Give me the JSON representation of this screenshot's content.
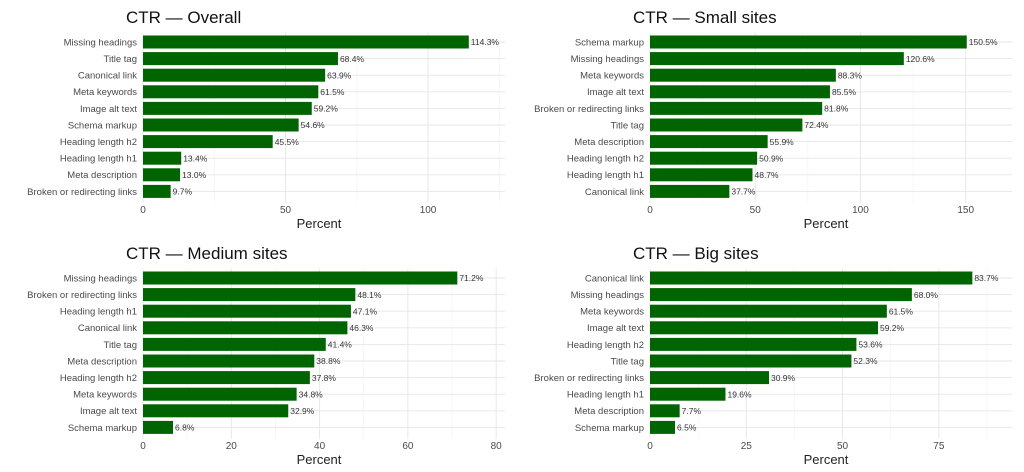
{
  "chart_data": [
    {
      "type": "bar",
      "orientation": "horizontal",
      "title": "CTR — Overall",
      "xlabel": "Percent",
      "ylabel": "",
      "xlim": [
        0,
        127
      ],
      "xticks": [
        0,
        50,
        100
      ],
      "bar_color": "#006400",
      "categories": [
        "Missing headings",
        "Title tag",
        "Canonical link",
        "Meta keywords",
        "Image alt text",
        "Schema markup",
        "Heading length h2",
        "Heading length h1",
        "Meta description",
        "Broken or redirecting links"
      ],
      "values": [
        114.3,
        68.4,
        63.9,
        61.5,
        59.2,
        54.6,
        45.5,
        13.4,
        13.0,
        9.7
      ],
      "labels": [
        "114.3%",
        "68.4%",
        "63.9%",
        "61.5%",
        "59.2%",
        "54.6%",
        "45.5%",
        "13.4%",
        "13.0%",
        "9.7%"
      ]
    },
    {
      "type": "bar",
      "orientation": "horizontal",
      "title": "CTR — Small sites",
      "xlabel": "Percent",
      "ylabel": "",
      "xlim": [
        0,
        172
      ],
      "xticks": [
        0,
        50,
        100,
        150
      ],
      "bar_color": "#006400",
      "categories": [
        "Schema markup",
        "Missing headings",
        "Meta keywords",
        "Image alt text",
        "Broken or redirecting links",
        "Title tag",
        "Meta description",
        "Heading length h2",
        "Heading length h1",
        "Canonical link"
      ],
      "values": [
        150.5,
        120.6,
        88.3,
        85.5,
        81.8,
        72.4,
        55.9,
        50.9,
        48.7,
        37.7
      ],
      "labels": [
        "150.5%",
        "120.6%",
        "88.3%",
        "85.5%",
        "81.8%",
        "72.4%",
        "55.9%",
        "50.9%",
        "48.7%",
        "37.7%"
      ]
    },
    {
      "type": "bar",
      "orientation": "horizontal",
      "title": "CTR — Medium sites",
      "xlabel": "Percent",
      "ylabel": "",
      "xlim": [
        0,
        82
      ],
      "xticks": [
        0,
        20,
        40,
        60,
        80
      ],
      "bar_color": "#006400",
      "categories": [
        "Missing headings",
        "Broken or redirecting links",
        "Heading length h1",
        "Canonical link",
        "Title tag",
        "Meta description",
        "Heading length h2",
        "Meta keywords",
        "Image alt text",
        "Schema markup"
      ],
      "values": [
        71.2,
        48.1,
        47.1,
        46.3,
        41.4,
        38.8,
        37.8,
        34.8,
        32.9,
        6.8
      ],
      "labels": [
        "71.2%",
        "48.1%",
        "47.1%",
        "46.3%",
        "41.4%",
        "38.8%",
        "37.8%",
        "34.8%",
        "32.9%",
        "6.8%"
      ]
    },
    {
      "type": "bar",
      "orientation": "horizontal",
      "title": "CTR — Big sites",
      "xlabel": "Percent",
      "ylabel": "",
      "xlim": [
        0,
        94
      ],
      "xticks": [
        0,
        25,
        50,
        75
      ],
      "bar_color": "#006400",
      "categories": [
        "Canonical link",
        "Missing headings",
        "Meta keywords",
        "Image alt text",
        "Heading length h2",
        "Title tag",
        "Broken or redirecting links",
        "Heading length h1",
        "Meta description",
        "Schema markup"
      ],
      "values": [
        83.7,
        68.0,
        61.5,
        59.2,
        53.6,
        52.3,
        30.9,
        19.6,
        7.7,
        6.5
      ],
      "labels": [
        "83.7%",
        "68.0%",
        "61.5%",
        "59.2%",
        "53.6%",
        "52.3%",
        "30.9%",
        "19.6%",
        "7.7%",
        "6.5%"
      ]
    }
  ]
}
